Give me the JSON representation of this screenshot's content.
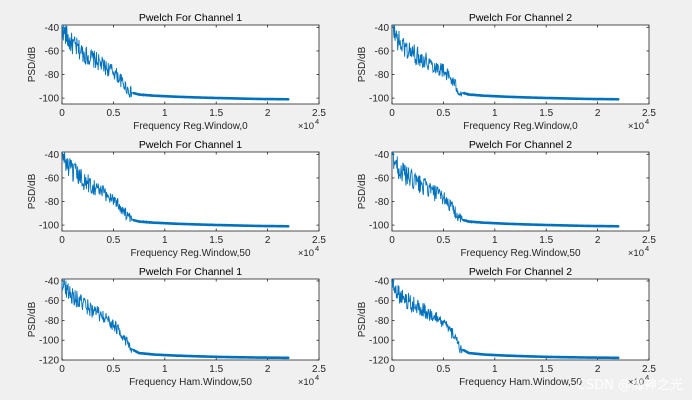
{
  "chart_data": [
    {
      "type": "line",
      "title": "Pwelch For Channel 1",
      "xlabel": "Frequency    Reg.Window,0",
      "ylabel": "PSD/dB",
      "xlim": [
        0,
        25000
      ],
      "ylim": [
        -105,
        -38
      ],
      "xticks": [
        0,
        5000,
        10000,
        15000,
        20000,
        25000
      ],
      "xtick_labels": [
        "0",
        "0.5",
        "1",
        "1.5",
        "2",
        "2.5"
      ],
      "x_exponent_label": "×10",
      "x_exponent_power": "4",
      "yticks": [
        -100,
        -80,
        -60,
        -40
      ],
      "ytick_labels": [
        "-100",
        "-80",
        "-60",
        "-40"
      ],
      "grid": false,
      "color": "#0072bd",
      "series": [
        {
          "name": "PSD",
          "x": [
            0,
            700,
            1500,
            2400,
            3300,
            4200,
            5100,
            6000,
            6600,
            7500,
            9000,
            11000,
            13000,
            15000,
            17000,
            19000,
            22050
          ],
          "y": [
            -40,
            -52,
            -58,
            -64,
            -68,
            -74,
            -78,
            -88,
            -95,
            -97,
            -98,
            -98.8,
            -99.4,
            -99.9,
            -100.3,
            -100.7,
            -101
          ]
        }
      ]
    },
    {
      "type": "line",
      "title": "Pwelch For Channel 2",
      "xlabel": "Frequency    Reg.Window,0",
      "ylabel": "PSD/dB",
      "xlim": [
        0,
        25000
      ],
      "ylim": [
        -105,
        -38
      ],
      "xticks": [
        0,
        5000,
        10000,
        15000,
        20000,
        25000
      ],
      "xtick_labels": [
        "0",
        "0.5",
        "1",
        "1.5",
        "2",
        "2.5"
      ],
      "x_exponent_label": "×10",
      "x_exponent_power": "4",
      "yticks": [
        -100,
        -80,
        -60,
        -40
      ],
      "ytick_labels": [
        "-100",
        "-80",
        "-60",
        "-40"
      ],
      "grid": false,
      "color": "#0072bd",
      "series": [
        {
          "name": "PSD",
          "x": [
            0,
            700,
            1500,
            2400,
            3300,
            4200,
            5100,
            6000,
            6600,
            7500,
            9000,
            11000,
            13000,
            15000,
            17000,
            19000,
            22050
          ],
          "y": [
            -40,
            -53,
            -59,
            -64,
            -68,
            -73,
            -77,
            -87,
            -95,
            -97,
            -98,
            -98.8,
            -99.4,
            -99.9,
            -100.3,
            -100.7,
            -101
          ]
        }
      ]
    },
    {
      "type": "line",
      "title": "Pwelch For Channel 1",
      "xlabel": "Frequency    Reg.Window,50",
      "ylabel": "PSD/dB",
      "xlim": [
        0,
        25000
      ],
      "ylim": [
        -105,
        -38
      ],
      "xticks": [
        0,
        5000,
        10000,
        15000,
        20000,
        25000
      ],
      "xtick_labels": [
        "0",
        "0.5",
        "1",
        "1.5",
        "2",
        "2.5"
      ],
      "x_exponent_label": "×10",
      "x_exponent_power": "4",
      "yticks": [
        -100,
        -80,
        -60,
        -40
      ],
      "ytick_labels": [
        "-100",
        "-80",
        "-60",
        "-40"
      ],
      "grid": false,
      "color": "#0072bd",
      "series": [
        {
          "name": "PSD",
          "x": [
            0,
            700,
            1500,
            2400,
            3300,
            4200,
            5100,
            6000,
            6600,
            7500,
            9000,
            11000,
            13000,
            15000,
            17000,
            19000,
            22050
          ],
          "y": [
            -40,
            -52,
            -58,
            -64,
            -68,
            -74,
            -78,
            -88,
            -95,
            -97,
            -98,
            -98.8,
            -99.4,
            -99.9,
            -100.3,
            -100.7,
            -101
          ]
        }
      ]
    },
    {
      "type": "line",
      "title": "Pwelch For Channel 2",
      "xlabel": "Frequency    Reg.Window,50",
      "ylabel": "PSD/dB",
      "xlim": [
        0,
        25000
      ],
      "ylim": [
        -105,
        -38
      ],
      "xticks": [
        0,
        5000,
        10000,
        15000,
        20000,
        25000
      ],
      "xtick_labels": [
        "0",
        "0.5",
        "1",
        "1.5",
        "2",
        "2.5"
      ],
      "x_exponent_label": "×10",
      "x_exponent_power": "4",
      "yticks": [
        -100,
        -80,
        -60,
        -40
      ],
      "ytick_labels": [
        "-100",
        "-80",
        "-60",
        "-40"
      ],
      "grid": false,
      "color": "#0072bd",
      "series": [
        {
          "name": "PSD",
          "x": [
            0,
            700,
            1500,
            2400,
            3300,
            4200,
            5100,
            6000,
            6600,
            7500,
            9000,
            11000,
            13000,
            15000,
            17000,
            19000,
            22050
          ],
          "y": [
            -40,
            -53,
            -59,
            -64,
            -68,
            -73,
            -77,
            -87,
            -95,
            -97,
            -98,
            -98.8,
            -99.4,
            -99.9,
            -100.3,
            -100.7,
            -101
          ]
        }
      ]
    },
    {
      "type": "line",
      "title": "Pwelch For Channel 1",
      "xlabel": "Frequency    Ham.Window,50",
      "ylabel": "PSD/dB",
      "xlim": [
        0,
        25000
      ],
      "ylim": [
        -120,
        -38
      ],
      "xticks": [
        0,
        5000,
        10000,
        15000,
        20000,
        25000
      ],
      "xtick_labels": [
        "0",
        "0.5",
        "1",
        "1.5",
        "2",
        "2.5"
      ],
      "x_exponent_label": "×10",
      "x_exponent_power": "4",
      "yticks": [
        -120,
        -100,
        -80,
        -60,
        -40
      ],
      "ytick_labels": [
        "-120",
        "-100",
        "-80",
        "-60",
        "-40"
      ],
      "grid": false,
      "color": "#0072bd",
      "series": [
        {
          "name": "PSD",
          "x": [
            0,
            700,
            1500,
            2400,
            3300,
            4200,
            5100,
            6000,
            6600,
            7500,
            9000,
            11000,
            13000,
            15000,
            17000,
            19000,
            22050
          ],
          "y": [
            -40,
            -52,
            -59,
            -66,
            -72,
            -78,
            -85,
            -96,
            -108,
            -113,
            -114.5,
            -115.5,
            -116.2,
            -116.8,
            -117.2,
            -117.5,
            -117.8
          ]
        }
      ]
    },
    {
      "type": "line",
      "title": "Pwelch For Channel 2",
      "xlabel": "Frequency    Ham.Window,50",
      "ylabel": "PSD/dB",
      "xlim": [
        0,
        25000
      ],
      "ylim": [
        -120,
        -38
      ],
      "xticks": [
        0,
        5000,
        10000,
        15000,
        20000,
        25000
      ],
      "xtick_labels": [
        "0",
        "0.5",
        "1",
        "1.5",
        "2",
        "2.5"
      ],
      "x_exponent_label": "×10",
      "x_exponent_power": "4",
      "yticks": [
        -120,
        -100,
        -80,
        -60,
        -40
      ],
      "ytick_labels": [
        "-120",
        "-100",
        "-80",
        "-60",
        "-40"
      ],
      "grid": false,
      "color": "#0072bd",
      "series": [
        {
          "name": "PSD",
          "x": [
            0,
            700,
            1500,
            2400,
            3300,
            4200,
            5100,
            6000,
            6600,
            7500,
            9000,
            11000,
            13000,
            15000,
            17000,
            19000,
            22050
          ],
          "y": [
            -40,
            -53,
            -60,
            -66,
            -71,
            -77,
            -84,
            -95,
            -108,
            -113,
            -114.5,
            -115.5,
            -116.2,
            -116.8,
            -117.2,
            -117.5,
            -117.8
          ]
        }
      ]
    }
  ],
  "watermark": "CSDN @海神之光"
}
